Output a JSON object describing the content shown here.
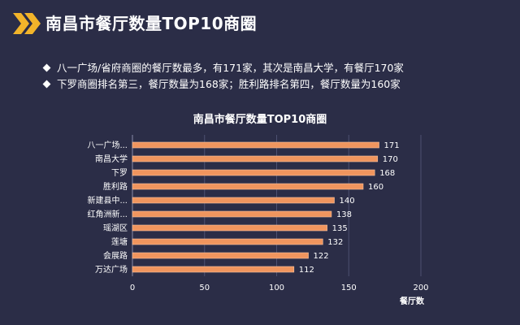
{
  "header": {
    "title": "南昌市餐厅数量TOP10商圈",
    "accent_color": "#f2b42a",
    "icon": "double-chevron-icon"
  },
  "bullets": [
    "八一广场/省府商圈的餐厅数最多，有171家，其次是南昌大学，有餐厅170家",
    "下罗商圈排名第三，餐厅数量为168家；胜利路排名第四，餐厅数量为160家"
  ],
  "chart_data": {
    "type": "bar",
    "orientation": "horizontal",
    "title": "南昌市餐厅数量TOP10商圈",
    "categories": [
      "八一广场...",
      "南昌大学",
      "下罗",
      "胜利路",
      "新建县中...",
      "红角洲新...",
      "瑶湖区",
      "莲塘",
      "会展路",
      "万达广场"
    ],
    "values": [
      171,
      170,
      168,
      160,
      140,
      138,
      135,
      132,
      122,
      112
    ],
    "xlabel": "餐厅数",
    "ylabel": "",
    "xlim": [
      0,
      200
    ],
    "xticks": [
      0,
      50,
      100,
      150,
      200
    ],
    "grid": true,
    "data_labels": true,
    "bar_color": "#f0955e",
    "bar_edge_color": "#f6c3a0"
  }
}
